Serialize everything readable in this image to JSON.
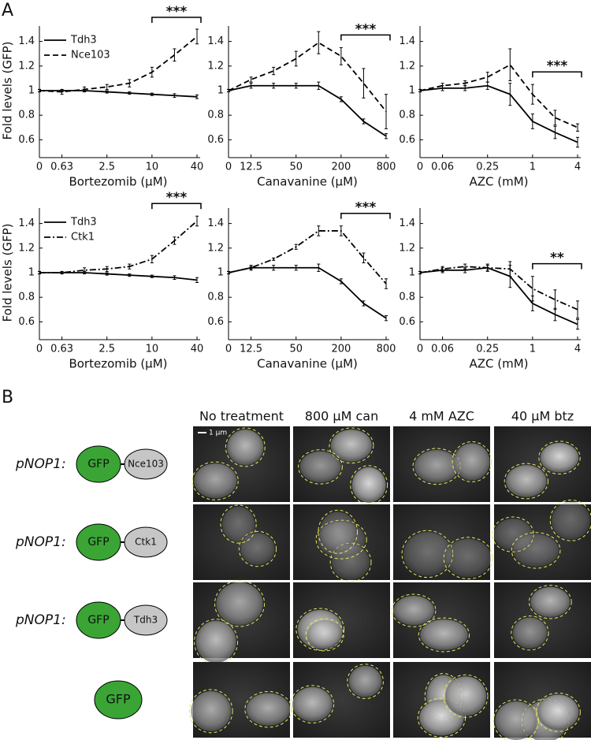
{
  "panel_a": {
    "label": "A"
  },
  "chart_data": [
    {
      "type": "line",
      "x_label": "Bortezomib (µM)",
      "y_label": "Fold levels (GFP)",
      "legend": "upper left",
      "categories": [
        "0",
        "0.63",
        null,
        "2.5",
        null,
        "10",
        null,
        "40"
      ],
      "ylim": [
        0.5,
        1.5
      ],
      "yticks": [
        0.6,
        0.8,
        1,
        1.2,
        1.4
      ],
      "annotation": "***",
      "series": [
        {
          "name": "Tdh3",
          "color": "#000000",
          "dash": "solid",
          "values": [
            1,
            1.0,
            1.0,
            0.99,
            0.98,
            0.97,
            0.96,
            0.95
          ],
          "errors": [
            0.01,
            0.01,
            0.01,
            0.01,
            0.01,
            0.01,
            0.015,
            0.015
          ]
        },
        {
          "name": "Nce103",
          "color": "#000000",
          "dash": "dashed",
          "values": [
            1,
            0.99,
            1.01,
            1.03,
            1.06,
            1.15,
            1.29,
            1.44
          ],
          "errors": [
            0.01,
            0.02,
            0.02,
            0.02,
            0.03,
            0.04,
            0.05,
            0.06
          ]
        }
      ]
    },
    {
      "type": "line",
      "x_label": "Canavanine (µM)",
      "categories": [
        "0",
        "12.5",
        null,
        "50",
        null,
        "200",
        null,
        "800"
      ],
      "ylim": [
        0.5,
        1.5
      ],
      "yticks": [
        0.6,
        0.8,
        1,
        1.2,
        1.4
      ],
      "annotation": "***",
      "series": [
        {
          "color": "#000000",
          "dash": "solid",
          "values": [
            1,
            1.04,
            1.04,
            1.04,
            1.04,
            0.93,
            0.75,
            0.63
          ],
          "errors": [
            0.01,
            0.02,
            0.02,
            0.02,
            0.03,
            0.02,
            0.02,
            0.02
          ]
        },
        {
          "color": "#000000",
          "dash": "dashed",
          "values": [
            1,
            1.09,
            1.16,
            1.26,
            1.39,
            1.28,
            1.06,
            0.83
          ],
          "errors": [
            0.01,
            0.02,
            0.03,
            0.06,
            0.09,
            0.07,
            0.12,
            0.14
          ]
        }
      ]
    },
    {
      "type": "line",
      "x_label": "AZC (mM)",
      "categories": [
        "0",
        "0.06",
        null,
        "0.25",
        null,
        "1",
        null,
        "4"
      ],
      "ylim": [
        0.5,
        1.5
      ],
      "yticks": [
        0.6,
        0.8,
        1,
        1.2,
        1.4
      ],
      "annotation": "***",
      "series": [
        {
          "color": "#000000",
          "dash": "solid",
          "values": [
            1,
            1.02,
            1.02,
            1.04,
            0.97,
            0.75,
            0.66,
            0.58
          ],
          "errors": [
            0.01,
            0.02,
            0.02,
            0.03,
            0.09,
            0.06,
            0.05,
            0.04
          ]
        },
        {
          "color": "#000000",
          "dash": "dashed",
          "values": [
            1,
            1.04,
            1.06,
            1.11,
            1.21,
            0.97,
            0.78,
            0.7
          ],
          "errors": [
            0.01,
            0.02,
            0.02,
            0.04,
            0.13,
            0.08,
            0.06,
            0.03
          ]
        }
      ]
    },
    {
      "type": "line",
      "x_label": "Bortezomib (µM)",
      "y_label": "Fold levels (GFP)",
      "legend": "upper left",
      "categories": [
        "0",
        "0.63",
        null,
        "2.5",
        null,
        "10",
        null,
        "40"
      ],
      "ylim": [
        0.5,
        1.5
      ],
      "yticks": [
        0.6,
        0.8,
        1,
        1.2,
        1.4
      ],
      "annotation": "***",
      "series": [
        {
          "name": "Tdh3",
          "color": "#000000",
          "dash": "solid",
          "values": [
            1,
            1.0,
            1.0,
            0.99,
            0.98,
            0.97,
            0.96,
            0.94
          ],
          "errors": [
            0.01,
            0.01,
            0.01,
            0.01,
            0.01,
            0.01,
            0.015,
            0.02
          ]
        },
        {
          "name": "Ctk1",
          "color": "#000000",
          "dash": "dashdot",
          "values": [
            1,
            1.0,
            1.02,
            1.03,
            1.05,
            1.11,
            1.26,
            1.42
          ],
          "errors": [
            0.01,
            0.01,
            0.02,
            0.02,
            0.02,
            0.03,
            0.03,
            0.04
          ]
        }
      ]
    },
    {
      "type": "line",
      "x_label": "Canavanine (µM)",
      "categories": [
        "0",
        "12.5",
        null,
        "50",
        null,
        "200",
        null,
        "800"
      ],
      "ylim": [
        0.5,
        1.5
      ],
      "yticks": [
        0.6,
        0.8,
        1,
        1.2,
        1.4
      ],
      "annotation": "***",
      "series": [
        {
          "color": "#000000",
          "dash": "solid",
          "values": [
            1,
            1.04,
            1.04,
            1.04,
            1.04,
            0.93,
            0.75,
            0.63
          ],
          "errors": [
            0.01,
            0.02,
            0.02,
            0.02,
            0.03,
            0.02,
            0.02,
            0.02
          ]
        },
        {
          "color": "#000000",
          "dash": "dashdot",
          "values": [
            1,
            1.04,
            1.11,
            1.21,
            1.34,
            1.34,
            1.12,
            0.91
          ],
          "errors": [
            0.01,
            0.01,
            0.01,
            0.02,
            0.04,
            0.04,
            0.04,
            0.04
          ]
        }
      ]
    },
    {
      "type": "line",
      "x_label": "AZC (mM)",
      "categories": [
        "0",
        "0.06",
        null,
        "0.25",
        null,
        "1",
        null,
        "4"
      ],
      "ylim": [
        0.5,
        1.5
      ],
      "yticks": [
        0.6,
        0.8,
        1,
        1.2,
        1.4
      ],
      "annotation": "**",
      "series": [
        {
          "color": "#000000",
          "dash": "solid",
          "values": [
            1,
            1.02,
            1.02,
            1.04,
            0.97,
            0.75,
            0.66,
            0.58
          ],
          "errors": [
            0.01,
            0.02,
            0.02,
            0.03,
            0.09,
            0.06,
            0.05,
            0.04
          ]
        },
        {
          "color": "#000000",
          "dash": "dashdot",
          "values": [
            1,
            1.03,
            1.05,
            1.04,
            1.03,
            0.87,
            0.78,
            0.7
          ],
          "errors": [
            0.01,
            0.02,
            0.02,
            0.02,
            0.06,
            0.1,
            0.08,
            0.07
          ]
        }
      ]
    }
  ],
  "panel_b": {
    "label": "B",
    "scale_bar": "1 µm",
    "columns": [
      "No treatment",
      "800 µM can",
      "4 mM AZC",
      "40 µM btz"
    ],
    "rows": [
      {
        "promoter": "pNOP1:",
        "tag": "GFP",
        "protein": "Nce103"
      },
      {
        "promoter": "pNOP1:",
        "tag": "GFP",
        "protein": "Ctk1"
      },
      {
        "promoter": "pNOP1:",
        "tag": "GFP",
        "protein": "Tdh3"
      },
      {
        "tag": "GFP"
      }
    ]
  }
}
